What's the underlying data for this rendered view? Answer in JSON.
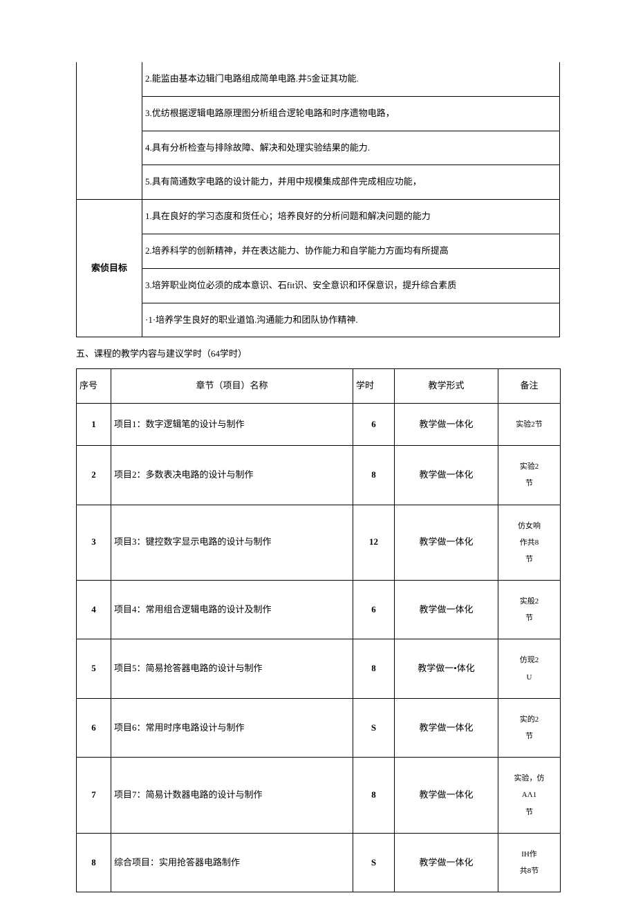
{
  "table1": {
    "row1_items": [
      "2.能监由基本边辑门电路组成简单电路.井5金证其功能.",
      "3.优纺根据逻辑电路原理图分析组合逻轮电路和时序遗物电路，",
      "4.具有分析检查与排除故障、解决和处理实验结果的能力.",
      "5.具有简通数字电路的设计能力，并用中规模集成部件完成相应功能，"
    ],
    "row2_label": "索侦目标",
    "row2_items": [
      "1.具在良好的学习态度和货任心；培养良好的分析问题和解决问题的能力",
      "2.培养科学的创新精神，并在表达能力、协作能力和自学能力方面均有所提高",
      "3.培笄职业岗位必须的成本意识、石fit识、安全意识和环保意识，提升综合素质",
      "·1·培养学生良好的职业道馅.沟通能力和团队协作精神."
    ]
  },
  "section_heading": "五、课程的教学内容与建议学时（64学时）",
  "table2": {
    "headers": {
      "seq": "序号",
      "name": "章节（项目）名称",
      "hours": "学时",
      "form": "教学形式",
      "note": "备注"
    },
    "rows": [
      {
        "seq": "1",
        "name": "项目1：数字逻辑笔的设计与制作",
        "hours": "6",
        "form": "教学做一体化",
        "note": "实验2节"
      },
      {
        "seq": "2",
        "name": "项目2：多数表决电路的设计与制作",
        "hours": "8",
        "form": "教学做一体化",
        "note": "实验2\n节"
      },
      {
        "seq": "3",
        "name": "项目3：键控数字显示电路的设计与制作",
        "hours": "12",
        "form": "教学做一体化",
        "note": "仿女响\n作共8\n节"
      },
      {
        "seq": "4",
        "name": "项目4：常用组合逻辑电路的设计及制作",
        "hours": "6",
        "form": "教学做一体化",
        "note": "实般2\n节"
      },
      {
        "seq": "5",
        "name": "项目5：简易抢答器电路的设计与制作",
        "hours": "8",
        "form": "教学做一•体化",
        "note": "仿现2\nU"
      },
      {
        "seq": "6",
        "name": "项目6：常用时序电路设计与制作",
        "hours": "S",
        "form": "教学做一体化",
        "note": "实的2\n节"
      },
      {
        "seq": "7",
        "name": "项目7：简易计数器电路的设计与制作",
        "hours": "8",
        "form": "教学做一体化",
        "note": "实验，仿\nAΛ1\n节"
      },
      {
        "seq": "8",
        "name": "综合项目：实用抢答器电路制作",
        "hours": "S",
        "form": "教学做一体化",
        "note": "IH作\n共8节"
      }
    ]
  }
}
